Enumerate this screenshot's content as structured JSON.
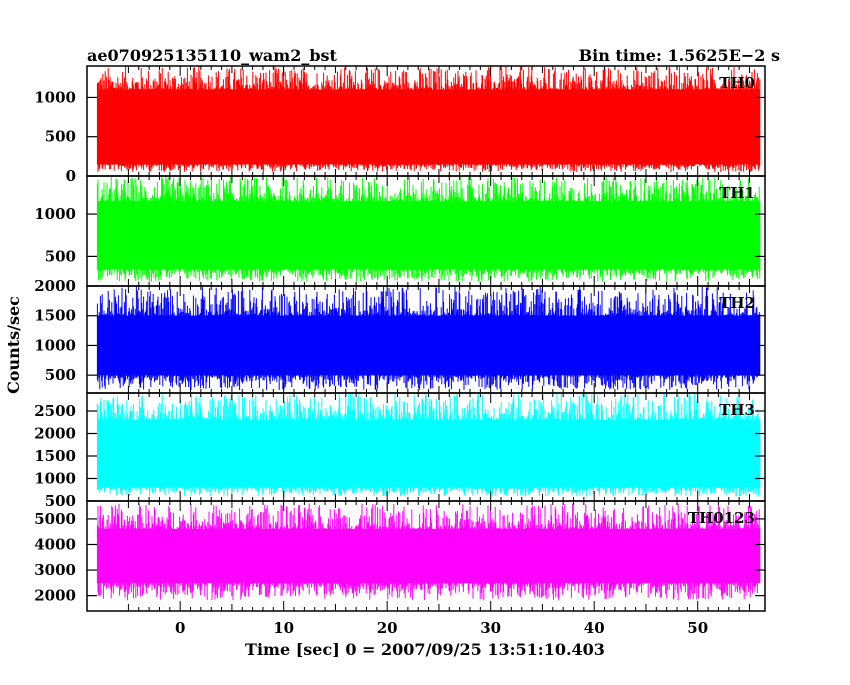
{
  "chart_data": {
    "type": "line",
    "title": "ae070925135110_wam2_bst",
    "subtitle": "Bin time: 1.5625E−2 s",
    "xlabel": "Time [sec] 0 = 2007/09/25 13:51:10.403",
    "ylabel": "Counts/sec",
    "xlim": [
      -9,
      56.5
    ],
    "x_data_range": [
      -8,
      56
    ],
    "x_ticks": [
      0,
      10,
      20,
      30,
      40,
      50
    ],
    "x_tick_labels": [
      "0",
      "10",
      "20",
      "30",
      "40",
      "50"
    ],
    "grid": false,
    "legend": "none",
    "panels": [
      {
        "name": "TH0",
        "color": "#ff0000",
        "ylim": [
          0,
          1400
        ],
        "y_ticks": [
          0,
          500,
          1000
        ],
        "y_tick_labels": [
          "0",
          "500",
          "1000"
        ],
        "envelope_low": 150,
        "envelope_high": 1100,
        "typical_min": 50,
        "typical_max": 1400
      },
      {
        "name": "TH1",
        "color": "#00ff00",
        "ylim": [
          150,
          1450
        ],
        "y_ticks": [
          500,
          1000
        ],
        "y_tick_labels": [
          "500",
          "1000"
        ],
        "envelope_low": 350,
        "envelope_high": 1150,
        "typical_min": 200,
        "typical_max": 1450
      },
      {
        "name": "TH2",
        "color": "#0000ff",
        "ylim": [
          200,
          2000
        ],
        "y_ticks": [
          500,
          1000,
          1500,
          2000
        ],
        "y_tick_labels": [
          "500",
          "1000",
          "1500",
          "2000"
        ],
        "envelope_low": 500,
        "envelope_high": 1500,
        "typical_min": 250,
        "typical_max": 2000
      },
      {
        "name": "TH3",
        "color": "#00ffff",
        "ylim": [
          500,
          2900
        ],
        "y_ticks": [
          500,
          1000,
          1500,
          2000,
          2500
        ],
        "y_tick_labels": [
          "500",
          "1000",
          "1500",
          "2000",
          "2500"
        ],
        "envelope_low": 800,
        "envelope_high": 2300,
        "typical_min": 600,
        "typical_max": 2900
      },
      {
        "name": "TH0123",
        "color": "#ff00ff",
        "ylim": [
          1400,
          5700
        ],
        "y_ticks": [
          2000,
          3000,
          4000,
          5000
        ],
        "y_tick_labels": [
          "2000",
          "3000",
          "4000",
          "5000"
        ],
        "envelope_low": 2500,
        "envelope_high": 4600,
        "typical_min": 1800,
        "typical_max": 5600
      }
    ]
  }
}
